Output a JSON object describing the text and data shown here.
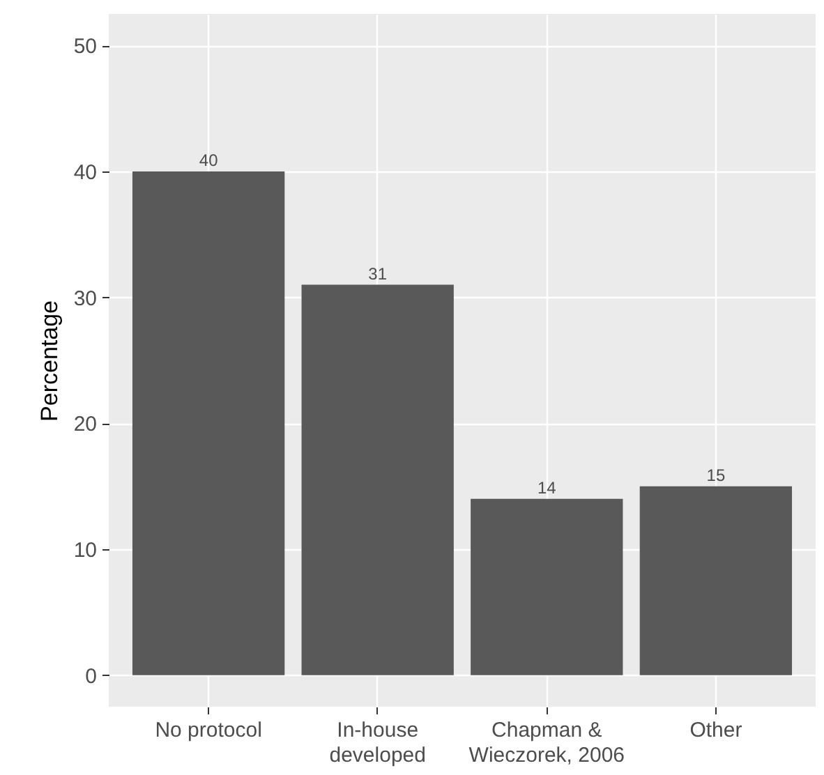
{
  "chart_data": {
    "type": "bar",
    "ylabel": "Percentage",
    "categories": [
      "No protocol",
      "In-house\ndeveloped",
      "Chapman &\nWieczorek, 2006",
      "Other"
    ],
    "values": [
      40,
      31,
      14,
      15
    ],
    "color": "#595959",
    "ylim": [
      -2.5,
      52.5
    ],
    "yticks": [
      0,
      10,
      20,
      30,
      40,
      50
    ],
    "grid": true,
    "data_labels": true
  }
}
